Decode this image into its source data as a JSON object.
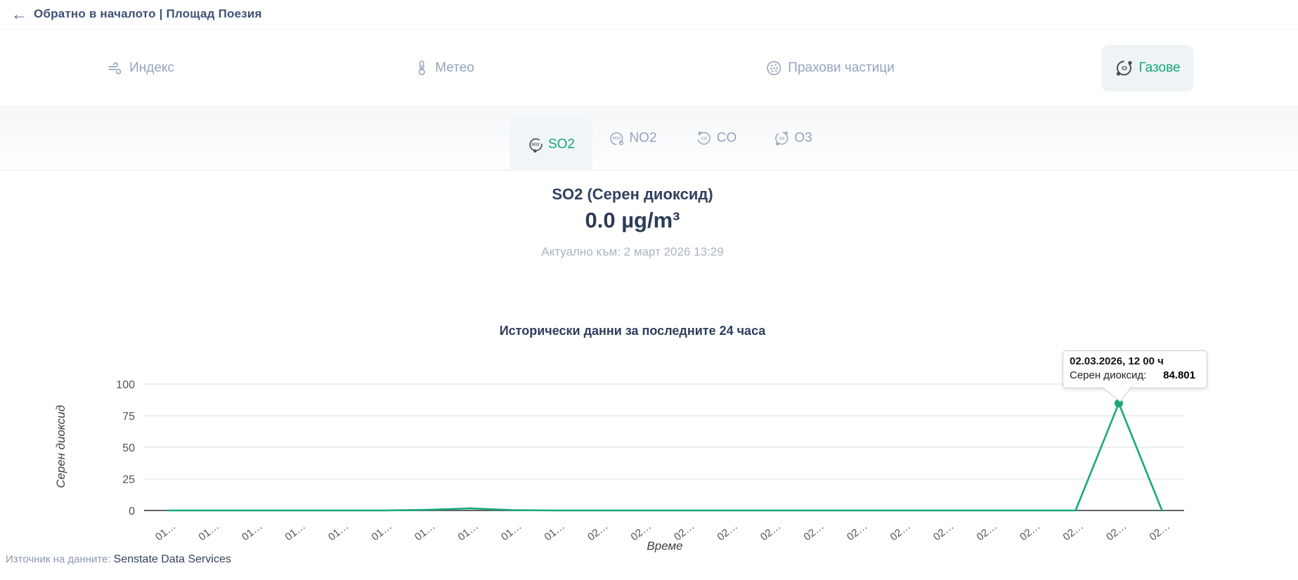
{
  "header": {
    "back_title": "Обратно в началото | Площад Поезия"
  },
  "nav_tabs": [
    {
      "label": "Индекс",
      "icon": "wind-icon",
      "active": false
    },
    {
      "label": "Метео",
      "icon": "thermometer-icon",
      "active": false
    },
    {
      "label": "Прахови частици",
      "icon": "particles-icon",
      "active": false
    },
    {
      "label": "Газове",
      "icon": "gas-molecule-icon",
      "active": true
    }
  ],
  "gas_tabs": [
    {
      "label": "SO2",
      "active": true
    },
    {
      "label": "NO2",
      "active": false
    },
    {
      "label": "CO",
      "active": false
    },
    {
      "label": "O3",
      "active": false
    }
  ],
  "reading": {
    "title": "SO2 (Серен диоксид)",
    "value": "0.0 µg/m³",
    "updated": "Актуално към: 2 март 2026 13:29"
  },
  "chart_data": {
    "type": "line",
    "title": "Исторически данни за последните 24 часа",
    "xlabel": "Време",
    "ylabel": "Серен диоксид",
    "ylim": [
      0,
      100
    ],
    "yticks": [
      0,
      25,
      50,
      75,
      100
    ],
    "grid": true,
    "legend": "none",
    "x_labels": [
      "01…",
      "01…",
      "01…",
      "01…",
      "01…",
      "01…",
      "01…",
      "01…",
      "01…",
      "01…",
      "02…",
      "02…",
      "02…",
      "02…",
      "02…",
      "02…",
      "02…",
      "02…",
      "02…",
      "02…",
      "02…",
      "02…",
      "02…",
      "02…"
    ],
    "series": [
      {
        "name": "Серен диоксид",
        "color": "#1aa87b",
        "values": [
          0,
          0,
          0,
          0,
          0,
          0,
          0.5,
          1.7,
          0.3,
          0,
          0,
          0,
          0,
          0,
          0,
          0,
          0,
          0,
          0,
          0,
          0,
          0,
          84.801,
          0
        ]
      }
    ],
    "highlight": {
      "index": 22,
      "value": 84.801
    }
  },
  "tooltip": {
    "datetime": "02.03.2026, 12 00 ч",
    "series_label": "Серен диоксид:",
    "value": "84.801"
  },
  "footer": {
    "label": "Източник на данните:",
    "source": "Senstate Data Services"
  }
}
